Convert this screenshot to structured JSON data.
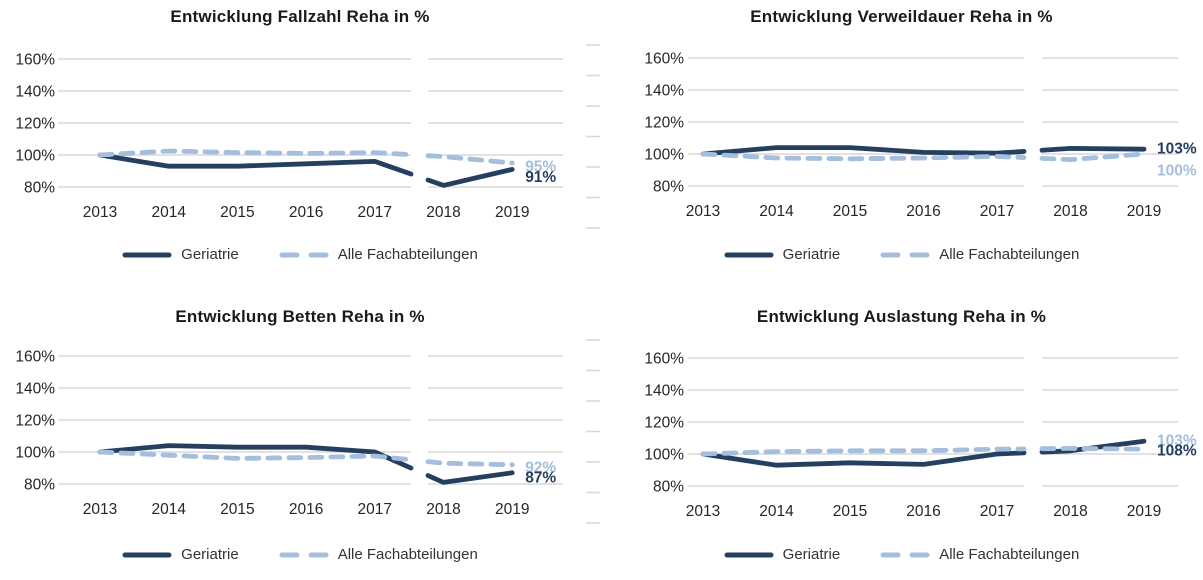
{
  "colors": {
    "geriatrie": "#243F5F",
    "alle_fachabteilungen": "#A4BEDC",
    "gridline": "#D8D8D8",
    "axis_text": "#262626",
    "title_text": "#1A1A1A",
    "legend_text": "#333333",
    "background": "#FFFFFF"
  },
  "chart_data": [
    {
      "type": "line",
      "title": "Entwicklung Fallzahl Reha in %",
      "categories": [
        "2013",
        "2014",
        "2015",
        "2016",
        "2017",
        "2018",
        "2019"
      ],
      "yticks": [
        "160%",
        "140%",
        "120%",
        "100%",
        "80%"
      ],
      "ylim": [
        80,
        160
      ],
      "grid": true,
      "legend_position": "bottom",
      "series": [
        {
          "name": "Geriatrie",
          "style": "solid",
          "color_key": "geriatrie",
          "values": [
            100,
            93,
            93,
            94.5,
            96,
            81,
            91
          ],
          "end_label": "91%"
        },
        {
          "name": "Alle Fachabteilungen",
          "style": "dashed",
          "color_key": "alle_fachabteilungen",
          "values": [
            100,
            102.5,
            101.5,
            101,
            101.5,
            99,
            95
          ],
          "end_label": "95%"
        }
      ]
    },
    {
      "type": "line",
      "title": "Entwicklung Verweildauer Reha in %",
      "categories": [
        "2013",
        "2014",
        "2015",
        "2016",
        "2017",
        "2018",
        "2019"
      ],
      "yticks": [
        "160%",
        "140%",
        "120%",
        "100%",
        "80%"
      ],
      "ylim": [
        80,
        160
      ],
      "grid": true,
      "legend_position": "bottom",
      "series": [
        {
          "name": "Geriatrie",
          "style": "solid",
          "color_key": "geriatrie",
          "values": [
            100,
            104,
            104,
            101,
            100.5,
            103.5,
            103
          ],
          "end_label": "103%"
        },
        {
          "name": "Alle Fachabteilungen",
          "style": "dashed",
          "color_key": "alle_fachabteilungen",
          "values": [
            100,
            97.5,
            97,
            97.5,
            98.5,
            96.5,
            100
          ],
          "end_label": "100%"
        }
      ]
    },
    {
      "type": "line",
      "title": "Entwicklung Betten Reha in %",
      "categories": [
        "2013",
        "2014",
        "2015",
        "2016",
        "2017",
        "2018",
        "2019"
      ],
      "yticks": [
        "160%",
        "140%",
        "120%",
        "100%",
        "80%"
      ],
      "ylim": [
        80,
        160
      ],
      "grid": true,
      "legend_position": "bottom",
      "series": [
        {
          "name": "Geriatrie",
          "style": "solid",
          "color_key": "geriatrie",
          "values": [
            100,
            104,
            103,
            103,
            100,
            81,
            87
          ],
          "end_label": "87%"
        },
        {
          "name": "Alle Fachabteilungen",
          "style": "dashed",
          "color_key": "alle_fachabteilungen",
          "values": [
            100,
            98,
            96,
            96.5,
            97.5,
            93,
            92
          ],
          "end_label": "92%"
        }
      ]
    },
    {
      "type": "line",
      "title": "Entwicklung Auslastung Reha in %",
      "categories": [
        "2013",
        "2014",
        "2015",
        "2016",
        "2017",
        "2018",
        "2019"
      ],
      "yticks": [
        "160%",
        "140%",
        "120%",
        "100%",
        "80%"
      ],
      "ylim": [
        80,
        160
      ],
      "grid": true,
      "legend_position": "bottom",
      "series": [
        {
          "name": "Geriatrie",
          "style": "solid",
          "color_key": "geriatrie",
          "values": [
            100,
            93,
            94.5,
            93.5,
            100,
            102,
            108
          ],
          "end_label": "108%"
        },
        {
          "name": "Alle Fachabteilungen",
          "style": "dashed",
          "color_key": "alle_fachabteilungen",
          "values": [
            100,
            101.5,
            102,
            102,
            103,
            103.5,
            103
          ],
          "end_label": "103%"
        }
      ]
    }
  ]
}
